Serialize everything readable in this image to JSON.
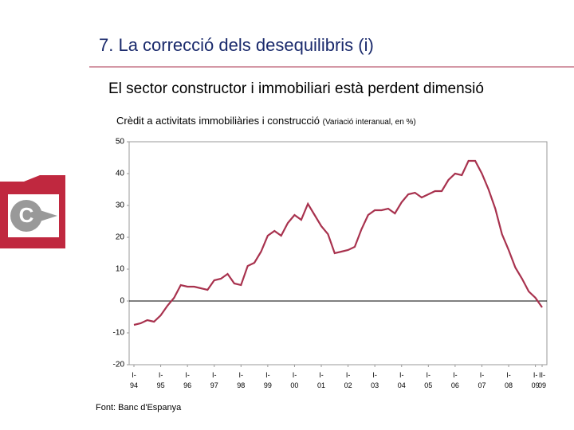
{
  "header": {
    "title": "7. La correcció dels desequilibris (i)",
    "subtitle": "El sector constructor i immobiliari està perdent dimensió"
  },
  "chart_data": {
    "type": "line",
    "title": "Crèdit a activitats immobiliàries i construcció",
    "subtitle": "(Variació interanual, en %)",
    "categories": [
      "I-94",
      null,
      null,
      null,
      "I-95",
      null,
      null,
      null,
      "I-96",
      null,
      null,
      null,
      "I-97",
      null,
      null,
      null,
      "I-98",
      null,
      null,
      null,
      "I-99",
      null,
      null,
      null,
      "I-00",
      null,
      null,
      null,
      "I-01",
      null,
      null,
      null,
      "I-02",
      null,
      null,
      null,
      "I-03",
      null,
      null,
      null,
      "I-04",
      null,
      null,
      null,
      "I-05",
      null,
      null,
      null,
      "I-06",
      null,
      null,
      null,
      "I-07",
      null,
      null,
      null,
      "I-08",
      null,
      null,
      null,
      "I-09",
      "II-09"
    ],
    "series": [
      {
        "name": "Crèdit",
        "color": "#a8324e",
        "values": [
          -7.5,
          -7,
          -6,
          -6.5,
          -4.5,
          -1.5,
          1,
          5,
          4.5,
          4.5,
          4,
          3.5,
          6.5,
          7,
          8.5,
          5.5,
          5,
          11,
          12,
          15.5,
          20.5,
          22,
          20.5,
          24.5,
          27,
          25.5,
          30.5,
          27,
          23.5,
          21,
          15,
          15.5,
          16,
          17,
          22.5,
          27,
          28.5,
          28.5,
          29,
          27.5,
          31,
          33.5,
          34,
          32.5,
          33.5,
          34.5,
          34.5,
          38,
          40,
          39.5,
          44,
          44,
          40,
          35,
          29,
          21,
          16,
          10.5,
          7,
          3,
          1,
          -2
        ]
      }
    ],
    "ylim": [
      -20,
      50
    ],
    "yticks": [
      -20,
      -10,
      0,
      10,
      20,
      30,
      40,
      50
    ],
    "grid": false,
    "source": "Font: Banc d'Espanya"
  }
}
